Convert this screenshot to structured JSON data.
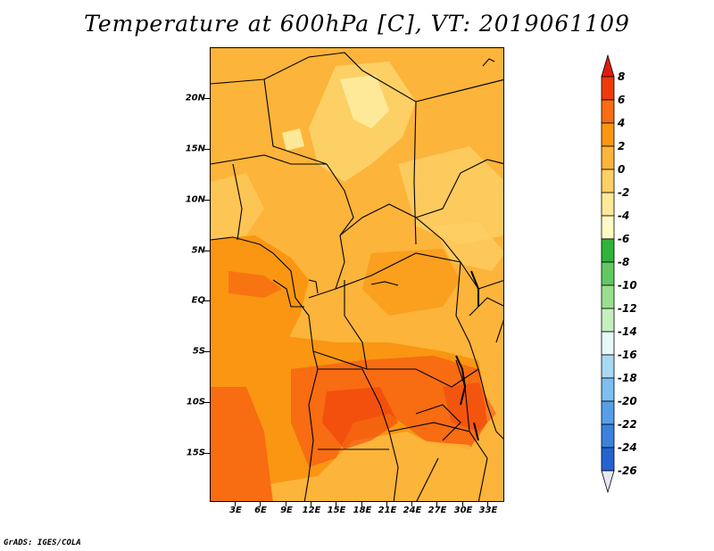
{
  "title": "Temperature at 600hPa [C], VT: 2019061109",
  "footer": "GrADS: IGES/COLA",
  "lat_labels": [
    "20N",
    "15N",
    "10N",
    "5N",
    "EQ",
    "5S",
    "10S",
    "15S"
  ],
  "lon_labels": [
    "3E",
    "6E",
    "9E",
    "12E",
    "15E",
    "18E",
    "21E",
    "24E",
    "27E",
    "30E",
    "33E"
  ],
  "colorbar": {
    "labels": [
      "8",
      "6",
      "4",
      "2",
      "0",
      "-2",
      "-4",
      "-6",
      "-8",
      "-10",
      "-12",
      "-14",
      "-16",
      "-18",
      "-20",
      "-22",
      "-24",
      "-26"
    ],
    "colors": [
      "#e11a0c",
      "#ee3a0a",
      "#f86c12",
      "#fa9612",
      "#fcb43a",
      "#fdd066",
      "#fee999",
      "#fff9c4",
      "#2fb33a",
      "#62c962",
      "#98e08e",
      "#c5f0be",
      "#e6f8f8",
      "#a9d8f5",
      "#7cbff0",
      "#559fe6",
      "#3a82dd",
      "#2463d0",
      "#1548c0",
      "#0c2fa8",
      "#0a1a80"
    ]
  }
}
